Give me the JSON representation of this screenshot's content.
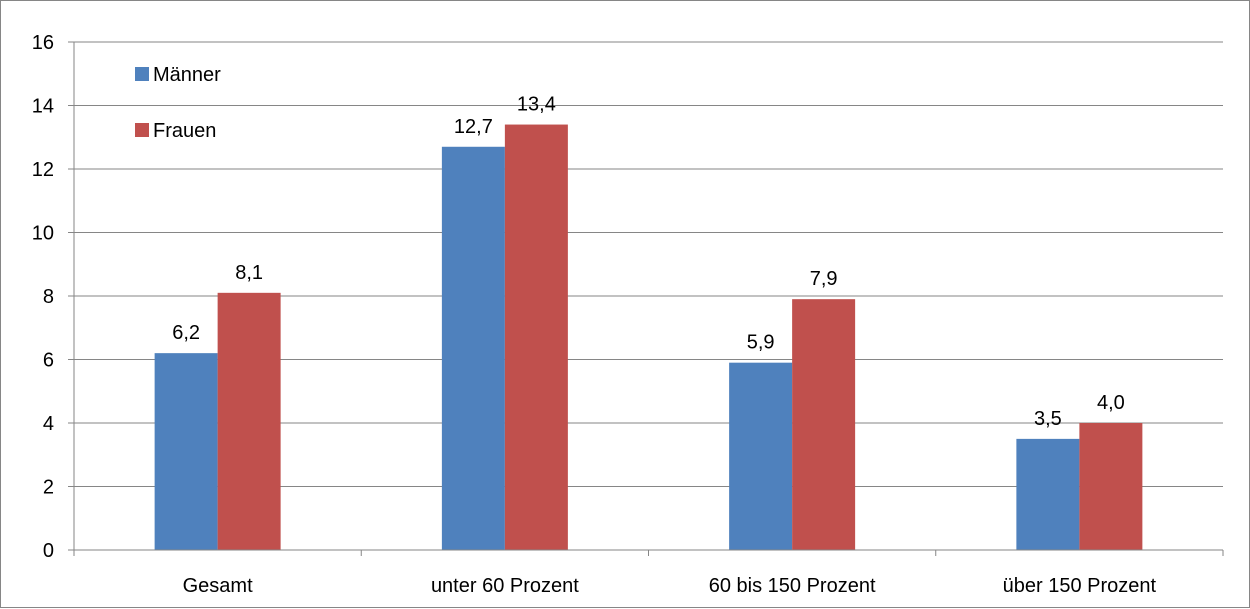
{
  "chart_data": {
    "type": "bar",
    "categories": [
      "Gesamt",
      "unter 60 Prozent",
      "60 bis 150 Prozent",
      "über 150 Prozent"
    ],
    "series": [
      {
        "name": "Männer",
        "values": [
          6.2,
          12.7,
          5.9,
          3.5
        ],
        "labels": [
          "6,2",
          "12,7",
          "5,9",
          "3,5"
        ],
        "color": "#4F81BD"
      },
      {
        "name": "Frauen",
        "values": [
          8.1,
          13.4,
          7.9,
          4.0
        ],
        "labels": [
          "8,1",
          "13,4",
          "7,9",
          "4,0"
        ],
        "color": "#C0504D"
      }
    ],
    "title": "",
    "xlabel": "",
    "ylabel": "",
    "ylim": [
      0,
      16
    ],
    "yticks": [
      0,
      2,
      4,
      6,
      8,
      10,
      12,
      14,
      16
    ],
    "grid": true,
    "legend_position": "top-left"
  },
  "colors": {
    "grid": "#868686",
    "axis": "#868686"
  }
}
